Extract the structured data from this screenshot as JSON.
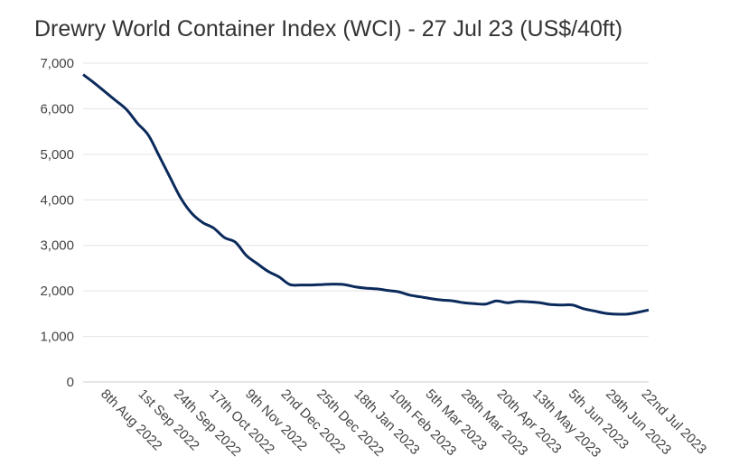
{
  "chart_data": {
    "type": "line",
    "title": "Drewry World Container Index (WCI) - 27 Jul 23 (US$/40ft)",
    "xlabel": "",
    "ylabel": "",
    "ylim": [
      0,
      7000
    ],
    "grid": true,
    "yticks": [
      0,
      1000,
      2000,
      3000,
      4000,
      5000,
      6000,
      7000
    ],
    "ytick_labels": [
      "0",
      "1,000",
      "2,000",
      "3,000",
      "4,000",
      "5,000",
      "6,000",
      "7,000"
    ],
    "x_start": "2022-07-28",
    "x_step_days": 7,
    "xticks": [
      {
        "date": "2022-08-08",
        "label": "8th Aug 2022"
      },
      {
        "date": "2022-09-01",
        "label": "1st Sep 2022"
      },
      {
        "date": "2022-09-24",
        "label": "24th Sep 2022"
      },
      {
        "date": "2022-10-17",
        "label": "17th Oct 2022"
      },
      {
        "date": "2022-11-09",
        "label": "9th Nov 2022"
      },
      {
        "date": "2022-12-02",
        "label": "2nd Dec 2022"
      },
      {
        "date": "2022-12-25",
        "label": "25th Dec 2022"
      },
      {
        "date": "2023-01-18",
        "label": "18th Jan 2023"
      },
      {
        "date": "2023-02-10",
        "label": "10th Feb 2023"
      },
      {
        "date": "2023-03-05",
        "label": "5th Mar 2023"
      },
      {
        "date": "2023-03-28",
        "label": "28th Mar 2023"
      },
      {
        "date": "2023-04-20",
        "label": "20th Apr 2023"
      },
      {
        "date": "2023-05-13",
        "label": "13th May 2023"
      },
      {
        "date": "2023-06-05",
        "label": "5th Jun 2023"
      },
      {
        "date": "2023-06-29",
        "label": "29th Jun 2023"
      },
      {
        "date": "2023-07-22",
        "label": "22nd Jul 2023"
      }
    ],
    "x_end": "2023-07-27",
    "series": [
      {
        "name": "WCI",
        "color": "#0b2a5c",
        "values": [
          6750,
          6570,
          6375,
          6180,
          5980,
          5680,
          5420,
          4960,
          4490,
          4030,
          3700,
          3500,
          3380,
          3170,
          3070,
          2780,
          2600,
          2430,
          2310,
          2140,
          2130,
          2130,
          2140,
          2150,
          2140,
          2090,
          2060,
          2045,
          2010,
          1980,
          1910,
          1870,
          1830,
          1800,
          1780,
          1740,
          1720,
          1710,
          1780,
          1740,
          1770,
          1760,
          1740,
          1700,
          1690,
          1690,
          1610,
          1560,
          1510,
          1490,
          1490,
          1530,
          1580
        ]
      }
    ]
  }
}
